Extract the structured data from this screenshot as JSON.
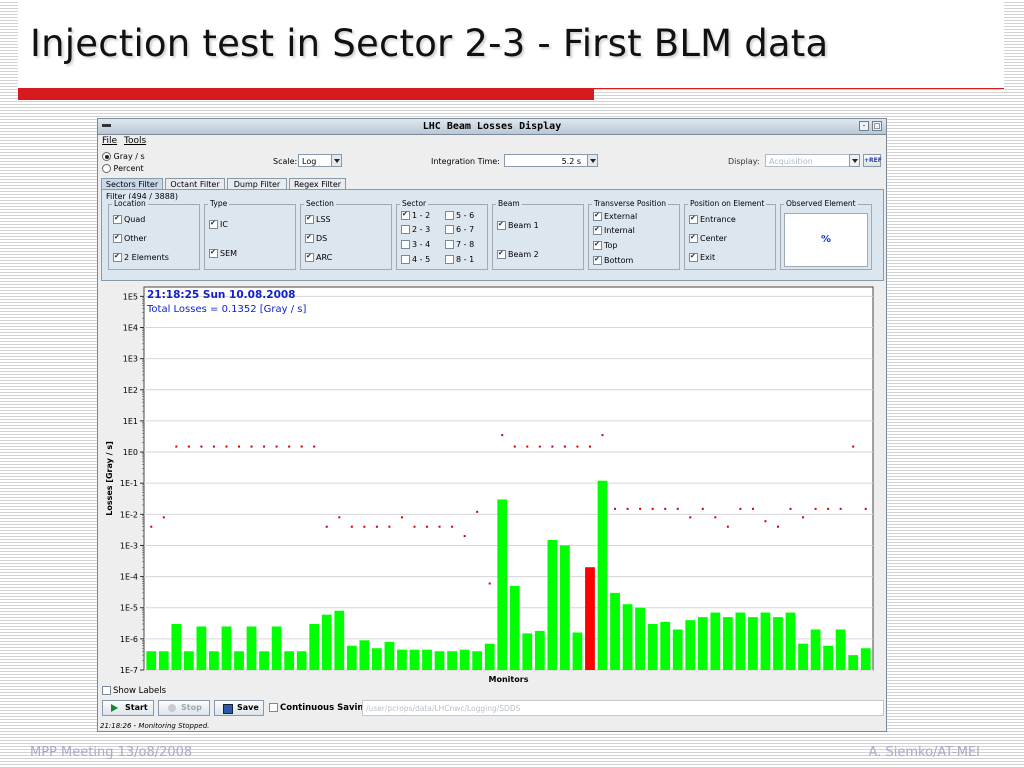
{
  "slide": {
    "title": "Injection test in Sector 2-3 - First BLM data",
    "footer_left": "MPP Meeting 13/o8/2008",
    "footer_right": "A. Siemko/AT-MEI"
  },
  "window": {
    "title": "LHC Beam Losses Display",
    "menu": [
      "File",
      "Tools"
    ]
  },
  "controls": {
    "unit_options": [
      "Gray / s",
      "Percent"
    ],
    "unit_selected": "Gray / s",
    "scale_label": "Scale:",
    "scale_value": "Log",
    "integration_label": "Integration Time:",
    "integration_value": "5.2 s",
    "display_label": "Display:",
    "display_value": "Acquisition",
    "ref_button": "+REF"
  },
  "tabs": [
    "Sectors Filter",
    "Octant Filter",
    "Dump Filter",
    "Regex Filter"
  ],
  "filter": {
    "count_label": "Filter (494 / 3888)",
    "location": {
      "title": "Location",
      "items": [
        "Quad",
        "Other",
        "2 Elements"
      ]
    },
    "type": {
      "title": "Type",
      "items": [
        "IC",
        "SEM"
      ]
    },
    "section": {
      "title": "Section",
      "items": [
        "LSS",
        "DS",
        "ARC"
      ]
    },
    "sector": {
      "title": "Sector",
      "items": [
        "1 - 2",
        "5 - 6",
        "2 - 3",
        "6 - 7",
        "3 - 4",
        "7 - 8",
        "4 - 5",
        "8 - 1"
      ]
    },
    "beam": {
      "title": "Beam",
      "items": [
        "Beam 1",
        "Beam 2"
      ]
    },
    "transverse": {
      "title": "Transverse Position",
      "items": [
        "External",
        "Internal",
        "Top",
        "Bottom"
      ]
    },
    "position": {
      "title": "Position on Element",
      "items": [
        "Entrance",
        "Center",
        "Exit"
      ]
    },
    "observed": {
      "title": "Observed Element",
      "value": "%"
    }
  },
  "chart_data": {
    "type": "bar",
    "overlay_line1": "21:18:25  Sun 10.08.2008",
    "overlay_line2": "Total Losses = 0.1352 [Gray / s]",
    "xlabel": "Monitors",
    "ylabel": "Losses [Gray / s]",
    "yscale": "log",
    "ylim": [
      1e-07,
      200000.0
    ],
    "ytick_labels": [
      "1E-7",
      "1E-6",
      "1E-5",
      "1E-4",
      "1E-3",
      "1E-2",
      "1E-1",
      "1E0",
      "1E1",
      "1E2",
      "1E3",
      "1E4",
      "1E5"
    ],
    "ytick_values": [
      1e-07,
      1e-06,
      1e-05,
      0.0001,
      0.001,
      0.01,
      0.1,
      1,
      10,
      100,
      1000,
      10000,
      100000
    ],
    "values": [
      4e-07,
      4e-07,
      3e-06,
      4e-07,
      2.5e-06,
      4e-07,
      2.5e-06,
      4e-07,
      2.5e-06,
      4e-07,
      2.5e-06,
      4e-07,
      4e-07,
      3e-06,
      6e-06,
      8e-06,
      6e-07,
      9e-07,
      5e-07,
      8e-07,
      4.5e-07,
      4.5e-07,
      4.5e-07,
      4e-07,
      4e-07,
      4.5e-07,
      4e-07,
      7e-07,
      0.03,
      5e-05,
      1.5e-06,
      1.8e-06,
      0.0015,
      0.001,
      1.6e-06,
      0.0002,
      0.12,
      3e-05,
      1.3e-05,
      1e-05,
      3e-06,
      3.5e-06,
      2e-06,
      4e-06,
      5e-06,
      7e-06,
      5e-06,
      7e-06,
      5e-06,
      7e-06,
      5e-06,
      7e-06,
      7e-07,
      2e-06,
      6e-07,
      2e-06,
      3e-07,
      5e-07
    ],
    "highlight_index": 35,
    "bar_color": "#00ff00",
    "highlight_color": "#ff0000",
    "thresholds": [
      0.004,
      0.008,
      1.5,
      1.5,
      1.5,
      1.5,
      1.5,
      1.5,
      1.5,
      1.5,
      1.5,
      1.5,
      1.5,
      1.5,
      0.004,
      0.008,
      0.004,
      0.004,
      0.004,
      0.004,
      0.008,
      0.004,
      0.004,
      0.004,
      0.004,
      0.002,
      0.012,
      6e-05,
      3.5,
      1.5,
      1.5,
      1.5,
      1.5,
      1.5,
      1.5,
      1.5,
      3.5,
      0.015,
      0.015,
      0.015,
      0.015,
      0.015,
      0.015,
      0.008,
      0.015,
      0.008,
      0.004,
      0.015,
      0.015,
      0.006,
      0.004,
      0.015,
      0.008,
      0.015,
      0.015,
      0.015,
      1.5,
      0.015
    ],
    "threshold_color": "#cc0000"
  },
  "bottom": {
    "show_labels": "Show Labels",
    "start": "Start",
    "stop": "Stop",
    "save": "Save",
    "continuous_saving": "Continuous Saving",
    "path": "/user/pcrops/data/LHCnwc/Logging/SDDS",
    "status": "21:18:26 - Monitoring Stopped."
  }
}
